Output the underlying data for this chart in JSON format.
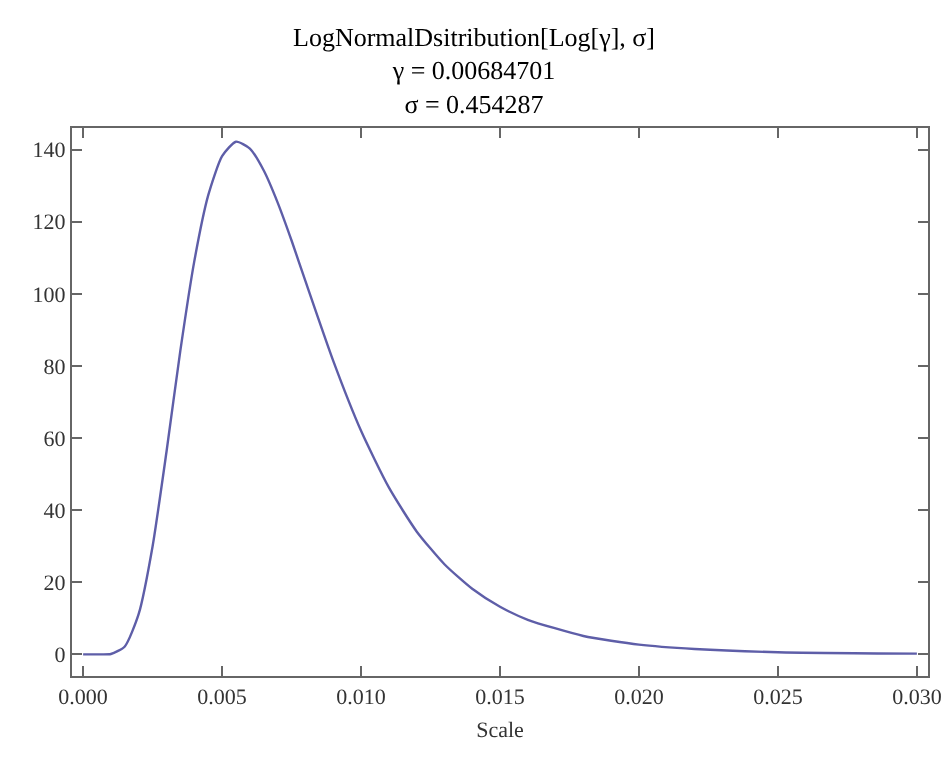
{
  "chart_data": {
    "type": "line",
    "title": "LogNormalDsitribution[Log[γ], σ]\nγ = 0.00684701\nσ = 0.454287",
    "xlabel": "Scale",
    "x": [
      0,
      0.0005,
      0.001,
      0.0015,
      0.002,
      0.0025,
      0.003,
      0.0035,
      0.004,
      0.0045,
      0.005,
      0.0055,
      0.006,
      0.0065,
      0.007,
      0.0075,
      0.008,
      0.009,
      0.01,
      0.011,
      0.012,
      0.013,
      0.014,
      0.015,
      0.016,
      0.018,
      0.02,
      0.022,
      0.025,
      0.03
    ],
    "series": [
      {
        "color": "#5e5ea8",
        "values": [
          0,
          0,
          0.1,
          2.2,
          11.2,
          30.0,
          56.2,
          84.3,
          109.0,
          127.3,
          138.2,
          142.2,
          140.3,
          134.2,
          125.3,
          114.8,
          103.5,
          81.4,
          62.0,
          46.3,
          34.1,
          25.0,
          18.2,
          13.2,
          9.6,
          5.1,
          2.7,
          1.5,
          0.6,
          0.2
        ]
      }
    ],
    "xlim": [
      -0.0004,
      0.0304
    ],
    "xticks": [
      {
        "value": 0,
        "label": "0.000"
      },
      {
        "value": 0.005,
        "label": "0.005"
      },
      {
        "value": 0.01,
        "label": "0.010"
      },
      {
        "value": 0.015,
        "label": "0.015"
      },
      {
        "value": 0.02,
        "label": "0.020"
      },
      {
        "value": 0.025,
        "label": "0.025"
      },
      {
        "value": 0.03,
        "label": "0.030"
      }
    ],
    "ylim": [
      -6,
      146
    ],
    "yticks": [
      0,
      20,
      40,
      60,
      80,
      100,
      120,
      140
    ],
    "grid": false,
    "marker": "none",
    "line_style": "solid"
  }
}
